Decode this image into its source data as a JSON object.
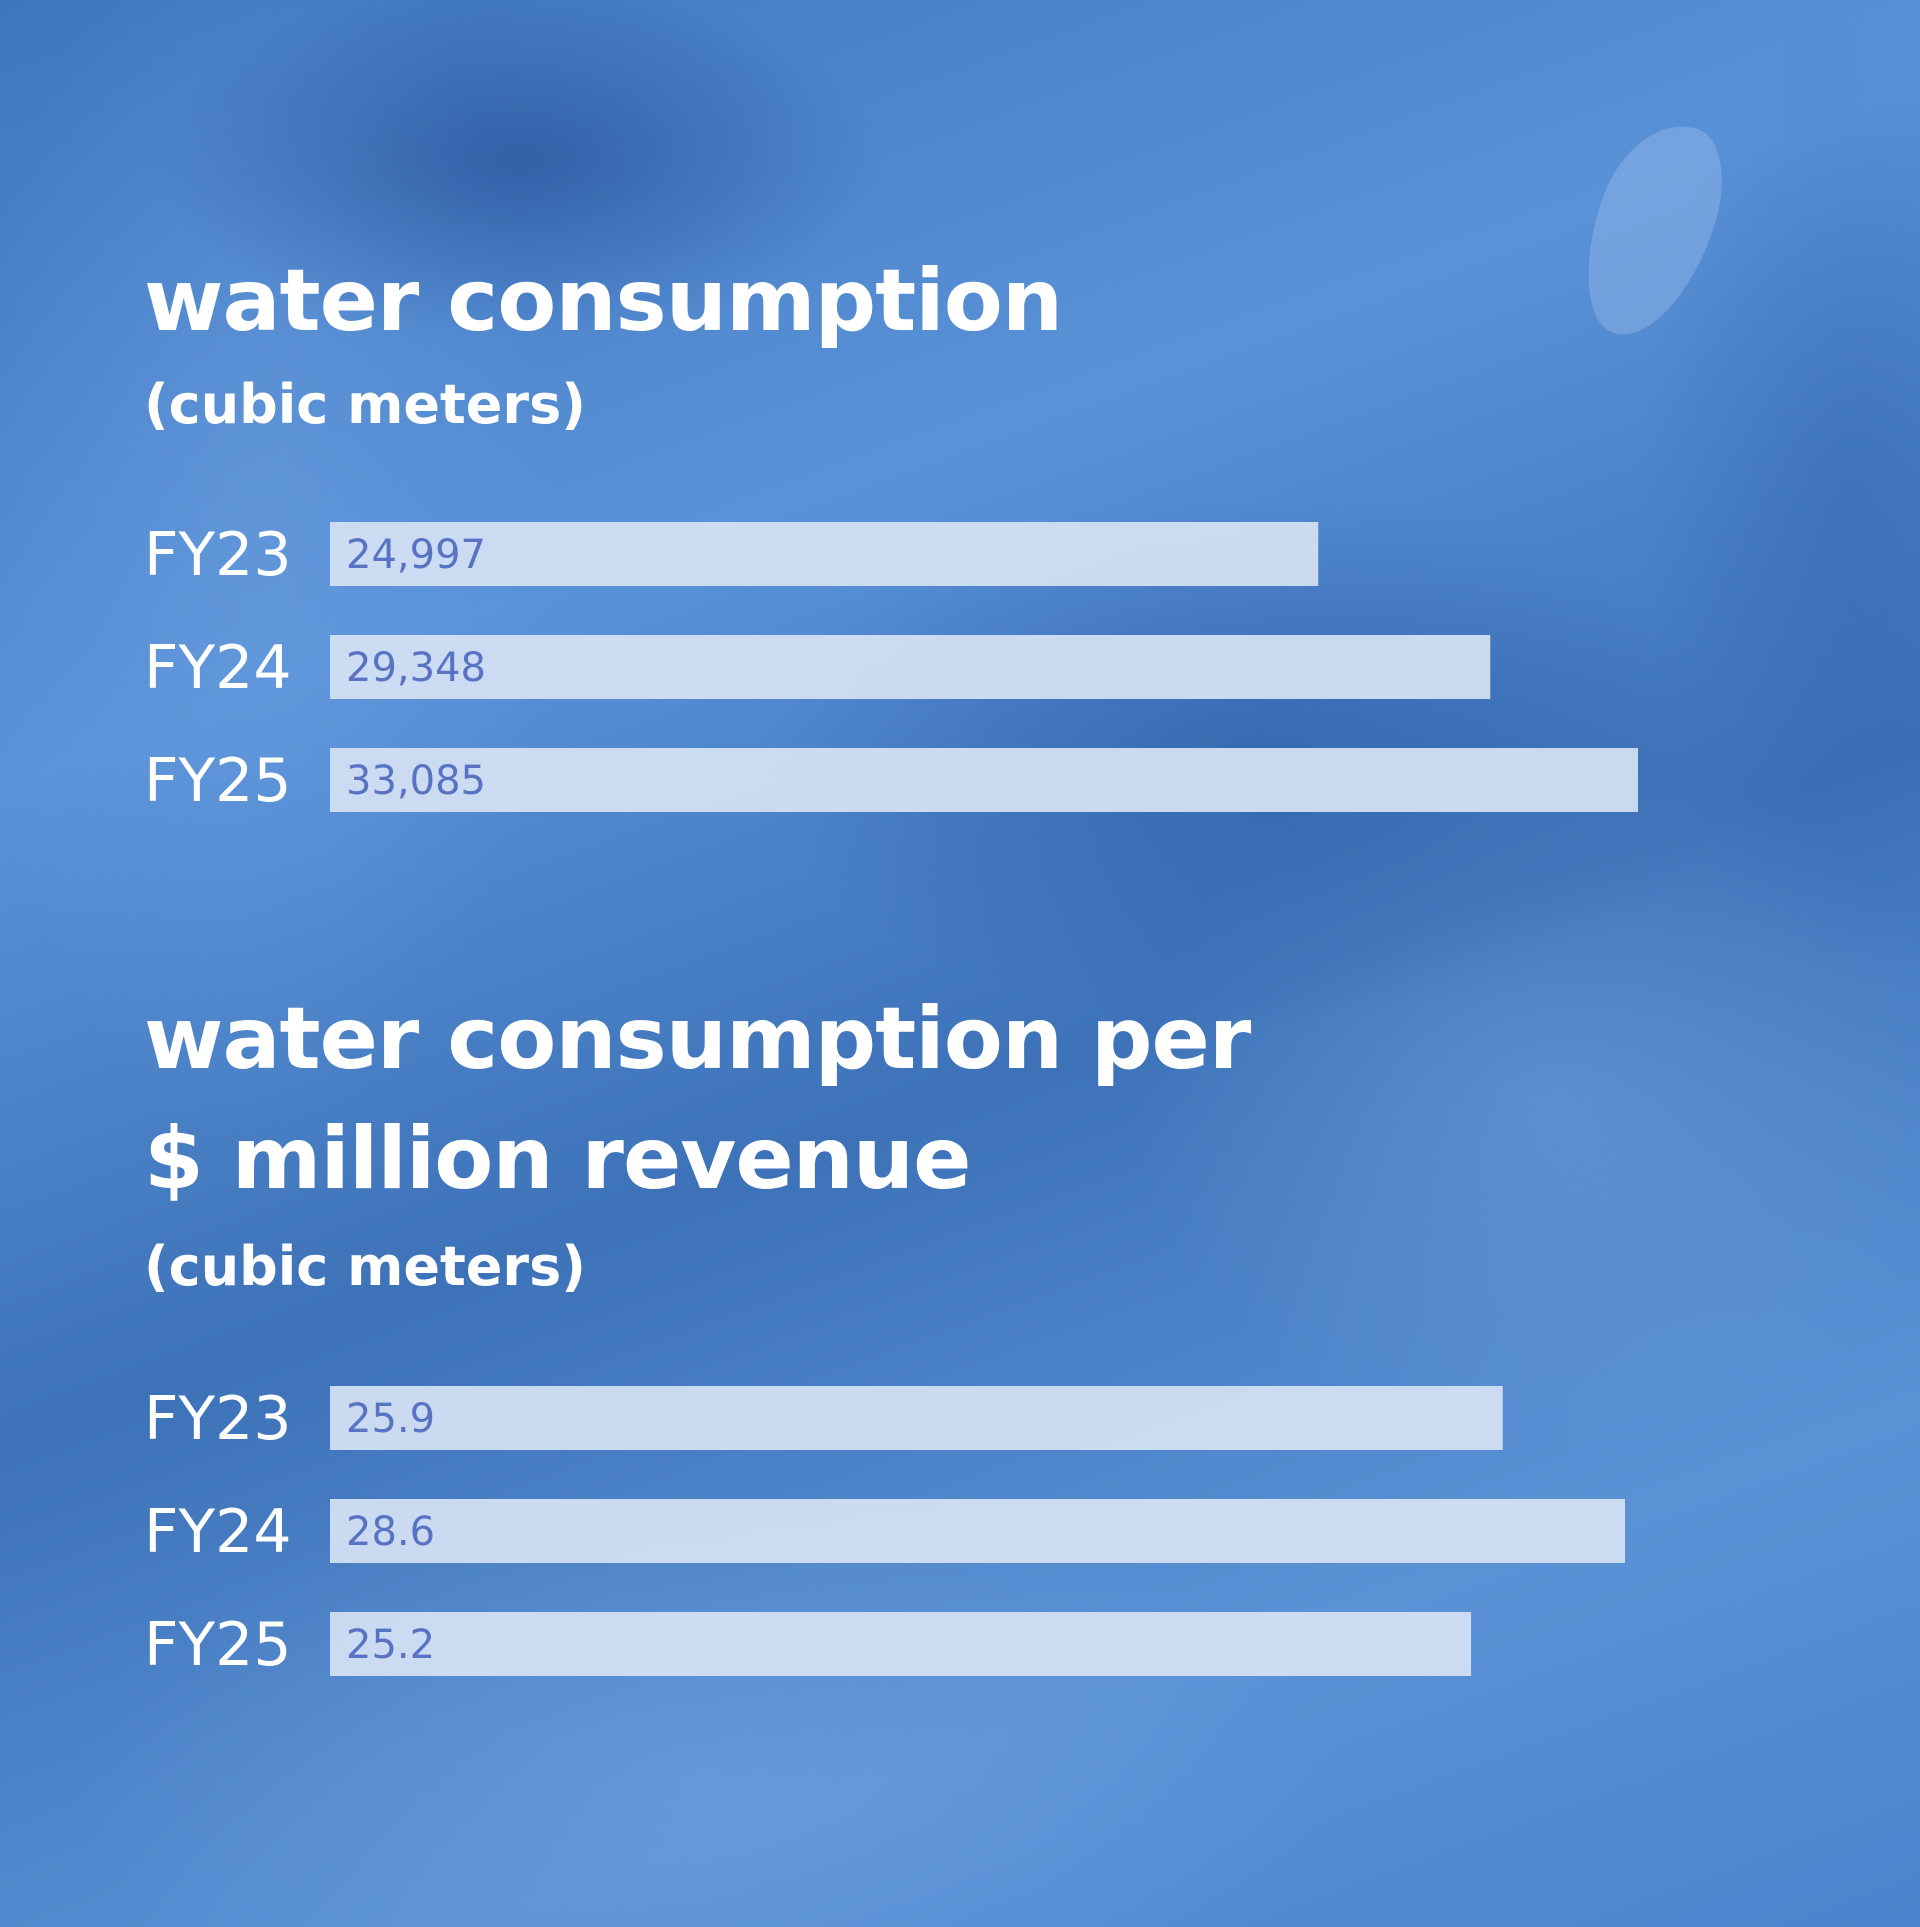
{
  "chart_data": [
    {
      "type": "bar",
      "orientation": "horizontal",
      "title": "water consumption",
      "subtitle": "(cubic meters)",
      "categories": [
        "FY23",
        "FY24",
        "FY25"
      ],
      "values": [
        24997,
        29348,
        33085
      ],
      "value_labels": [
        "24,997",
        "29,348",
        "33,085"
      ],
      "xlim": [
        0,
        33085
      ],
      "grid": false
    },
    {
      "type": "bar",
      "orientation": "horizontal",
      "title_lines": [
        "water consumption per",
        "$ million revenue"
      ],
      "subtitle": "(cubic meters)",
      "categories": [
        "FY23",
        "FY24",
        "FY25"
      ],
      "values": [
        25.9,
        28.6,
        25.2
      ],
      "value_labels": [
        "25.9",
        "28.6",
        "25.2"
      ],
      "xlim": [
        0,
        28.6
      ],
      "grid": false
    }
  ],
  "colors": {
    "background": "#4a7fc4",
    "bar": "#d4e2f4",
    "value_text": "#5a72c4",
    "text": "#ffffff"
  }
}
